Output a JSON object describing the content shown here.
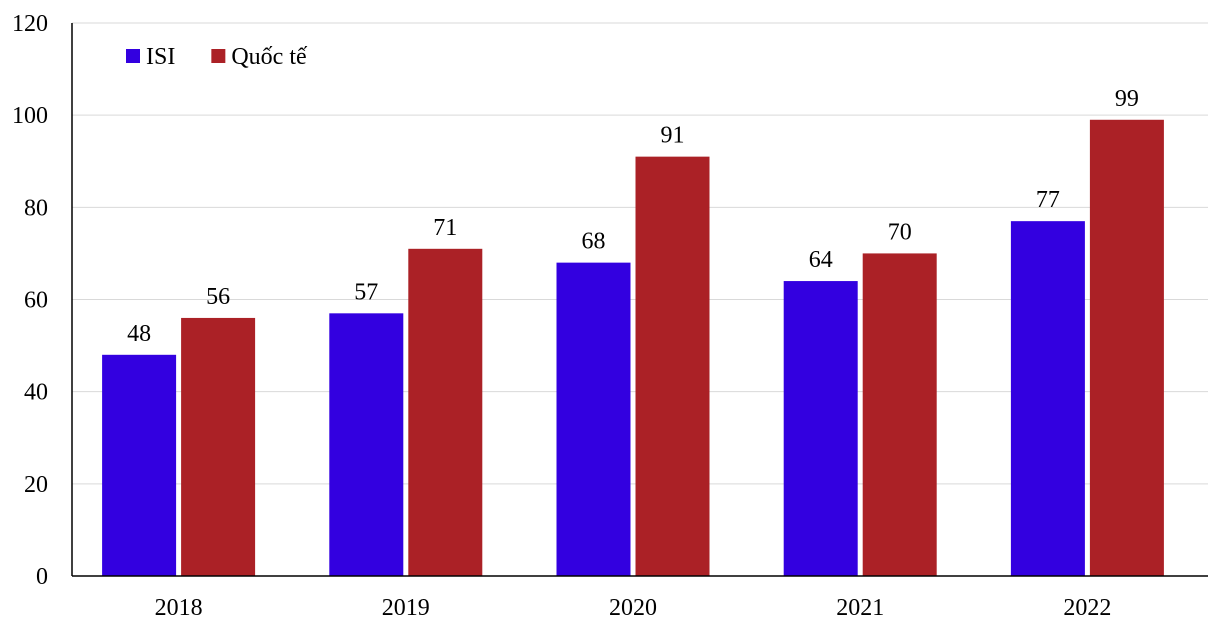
{
  "chart_data": {
    "type": "bar",
    "categories": [
      "2018",
      "2019",
      "2020",
      "2021",
      "2022"
    ],
    "series": [
      {
        "name": "ISI",
        "values": [
          48,
          57,
          68,
          64,
          77
        ],
        "color": "#3300e0"
      },
      {
        "name": "Quốc tế",
        "values": [
          56,
          71,
          91,
          70,
          99
        ],
        "color": "#ab2126"
      }
    ],
    "title": "",
    "xlabel": "",
    "ylabel": "",
    "ylim": [
      0,
      120
    ],
    "yticks": [
      0,
      20,
      40,
      60,
      80,
      100,
      120
    ],
    "grid": true,
    "legend_position": "top-left",
    "data_labels": true
  }
}
